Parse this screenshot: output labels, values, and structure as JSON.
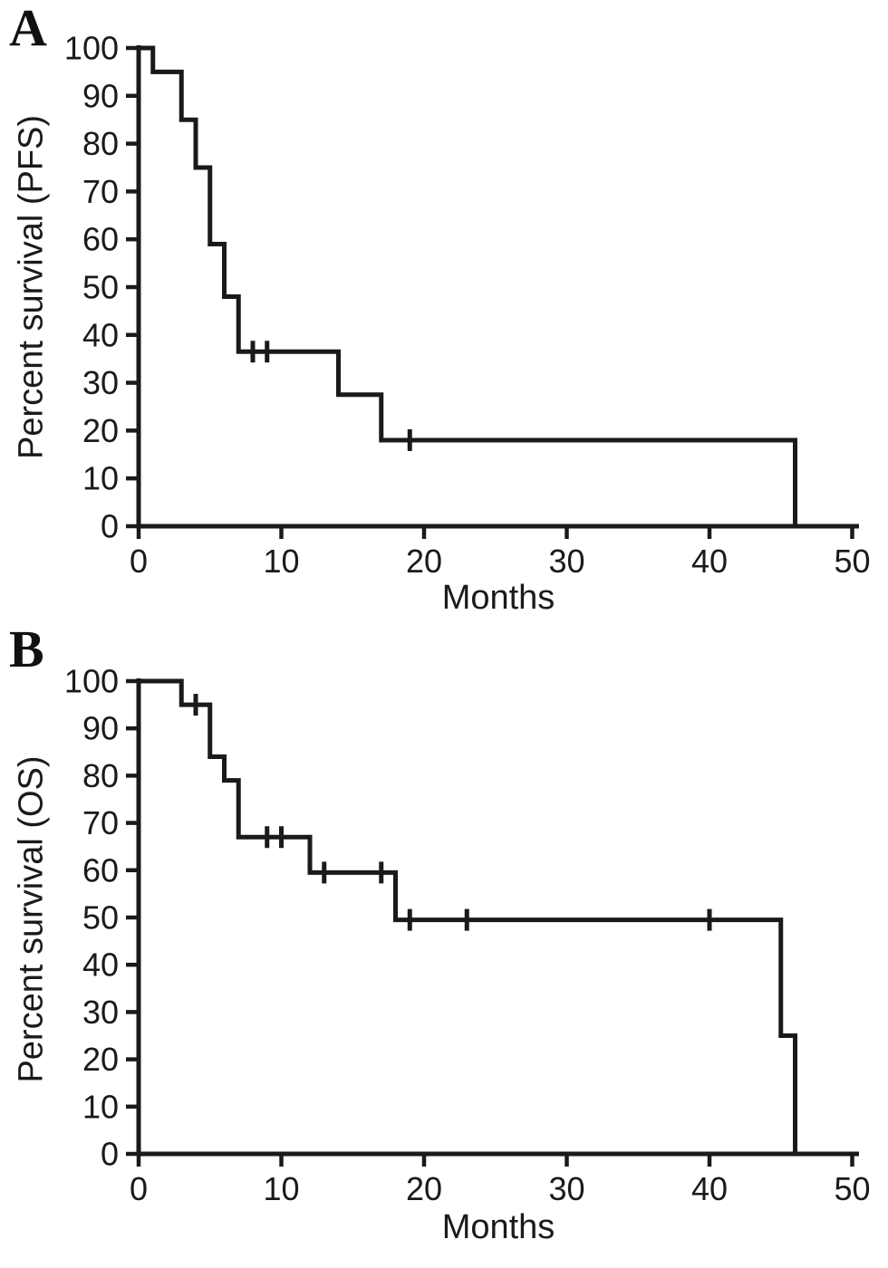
{
  "colors": {
    "ink": "#1a1a1a",
    "background": "#ffffff"
  },
  "panels": [
    {
      "label": "A",
      "ylabel": "Percent survival (PFS)",
      "xlabel": "Months"
    },
    {
      "label": "B",
      "ylabel": "Percent survival (OS)",
      "xlabel": "Months"
    }
  ],
  "chart_data": [
    {
      "type": "line",
      "subtype": "kaplan_meier_step_curve",
      "panel": "A",
      "title": "",
      "xlabel": "Months",
      "ylabel": "Percent survival (PFS)",
      "xlim": [
        0,
        50
      ],
      "ylim": [
        0,
        100
      ],
      "xticks": [
        0,
        10,
        20,
        30,
        40,
        50
      ],
      "yticks": [
        0,
        10,
        20,
        30,
        40,
        50,
        60,
        70,
        80,
        90,
        100
      ],
      "grid": false,
      "legend": "none",
      "steps": [
        [
          0,
          100
        ],
        [
          1,
          95
        ],
        [
          3,
          85
        ],
        [
          4,
          75
        ],
        [
          5,
          59
        ],
        [
          6,
          48
        ],
        [
          7,
          36.5
        ],
        [
          14,
          27.5
        ],
        [
          17,
          18
        ],
        [
          46,
          0
        ]
      ],
      "censor_marks": [
        [
          8,
          36.5
        ],
        [
          9,
          36.5
        ],
        [
          19,
          18
        ]
      ]
    },
    {
      "type": "line",
      "subtype": "kaplan_meier_step_curve",
      "panel": "B",
      "title": "",
      "xlabel": "Months",
      "ylabel": "Percent survival (OS)",
      "xlim": [
        0,
        50
      ],
      "ylim": [
        0,
        100
      ],
      "xticks": [
        0,
        10,
        20,
        30,
        40,
        50
      ],
      "yticks": [
        0,
        10,
        20,
        30,
        40,
        50,
        60,
        70,
        80,
        90,
        100
      ],
      "grid": false,
      "legend": "none",
      "steps": [
        [
          0,
          100
        ],
        [
          3,
          95
        ],
        [
          5,
          84
        ],
        [
          6,
          79
        ],
        [
          7,
          67
        ],
        [
          12,
          59.5
        ],
        [
          18,
          49.5
        ],
        [
          45,
          25
        ],
        [
          46,
          0
        ]
      ],
      "censor_marks": [
        [
          4,
          95
        ],
        [
          9,
          67
        ],
        [
          10,
          67
        ],
        [
          13,
          59.5
        ],
        [
          17,
          59.5
        ],
        [
          19,
          49.5
        ],
        [
          23,
          49.5
        ],
        [
          40,
          49.5
        ]
      ]
    }
  ]
}
